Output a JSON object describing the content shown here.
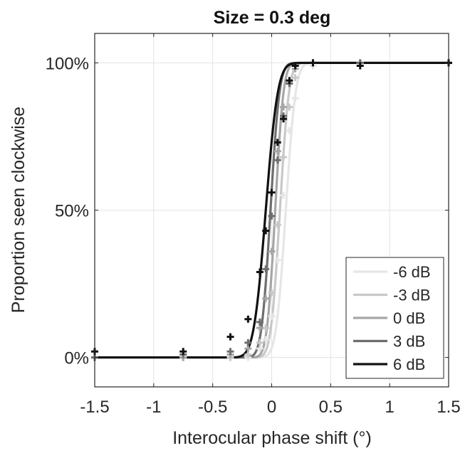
{
  "chart_data": {
    "type": "line",
    "title": "Size = 0.3 deg",
    "xlabel": "Interocular phase shift (°)",
    "ylabel": "Proportion seen clockwise",
    "xlim": [
      -1.5,
      1.5
    ],
    "ylim": [
      -0.1,
      1.1
    ],
    "xticks": [
      -1.5,
      -1,
      -0.5,
      0,
      0.5,
      1,
      1.5
    ],
    "xtick_labels": [
      "-1.5",
      "-1",
      "-0.5",
      "0",
      "0.5",
      "1",
      "1.5"
    ],
    "yticks": [
      0,
      0.5,
      1
    ],
    "ytick_labels": [
      "0%",
      "50%",
      "100%"
    ],
    "grid": true,
    "legend_position": "bottom-right",
    "series": [
      {
        "name": "-6 dB",
        "color": "#e6e6e6",
        "mu": 0.12,
        "sigma": 0.065,
        "points": [
          [
            -1.5,
            0
          ],
          [
            -0.75,
            0
          ],
          [
            -0.35,
            0
          ],
          [
            -0.2,
            0
          ],
          [
            -0.1,
            0.03
          ],
          [
            -0.05,
            0.06
          ],
          [
            0,
            0.14
          ],
          [
            0.05,
            0.33
          ],
          [
            0.1,
            0.55
          ],
          [
            0.15,
            0.77
          ],
          [
            0.2,
            0.88
          ],
          [
            0.35,
            0.99
          ],
          [
            0.75,
            1
          ],
          [
            1.5,
            1
          ]
        ]
      },
      {
        "name": "-3 dB",
        "color": "#c8c8c8",
        "mu": 0.07,
        "sigma": 0.06,
        "points": [
          [
            -1.5,
            0
          ],
          [
            -0.75,
            0
          ],
          [
            -0.35,
            0
          ],
          [
            -0.2,
            0.01
          ],
          [
            -0.1,
            0.05
          ],
          [
            -0.05,
            0.1
          ],
          [
            0,
            0.22
          ],
          [
            0.05,
            0.45
          ],
          [
            0.1,
            0.68
          ],
          [
            0.15,
            0.85
          ],
          [
            0.2,
            0.95
          ],
          [
            0.35,
            1
          ],
          [
            0.75,
            1
          ],
          [
            1.5,
            1
          ]
        ]
      },
      {
        "name": "0 dB",
        "color": "#a6a6a6",
        "mu": 0.03,
        "sigma": 0.055,
        "points": [
          [
            -1.5,
            0
          ],
          [
            -0.75,
            0
          ],
          [
            -0.35,
            0.01
          ],
          [
            -0.2,
            0.03
          ],
          [
            -0.1,
            0.1
          ],
          [
            -0.05,
            0.2
          ],
          [
            0,
            0.36
          ],
          [
            0.05,
            0.7
          ],
          [
            0.1,
            0.85
          ],
          [
            0.15,
            0.93
          ],
          [
            0.2,
            0.98
          ],
          [
            0.35,
            1
          ],
          [
            0.75,
            1
          ],
          [
            1.5,
            1
          ]
        ]
      },
      {
        "name": "3 dB",
        "color": "#6e6e6e",
        "mu": -0.01,
        "sigma": 0.06,
        "points": [
          [
            -1.5,
            0
          ],
          [
            -0.75,
            0.01
          ],
          [
            -0.35,
            0.02
          ],
          [
            -0.2,
            0.05
          ],
          [
            -0.1,
            0.12
          ],
          [
            -0.05,
            0.3
          ],
          [
            0,
            0.48
          ],
          [
            0.05,
            0.67
          ],
          [
            0.1,
            0.82
          ],
          [
            0.15,
            0.93
          ],
          [
            0.2,
            0.99
          ],
          [
            0.35,
            1
          ],
          [
            0.75,
            1
          ],
          [
            1.5,
            1
          ]
        ]
      },
      {
        "name": "6 dB",
        "color": "#111111",
        "mu": -0.05,
        "sigma": 0.08,
        "points": [
          [
            -1.5,
            0.02
          ],
          [
            -0.75,
            0.02
          ],
          [
            -0.35,
            0.07
          ],
          [
            -0.2,
            0.13
          ],
          [
            -0.1,
            0.29
          ],
          [
            -0.05,
            0.43
          ],
          [
            0,
            0.56
          ],
          [
            0.05,
            0.73
          ],
          [
            0.1,
            0.81
          ],
          [
            0.15,
            0.94
          ],
          [
            0.2,
            0.99
          ],
          [
            0.35,
            1
          ],
          [
            0.75,
            0.99
          ],
          [
            1.5,
            1
          ]
        ]
      }
    ]
  }
}
